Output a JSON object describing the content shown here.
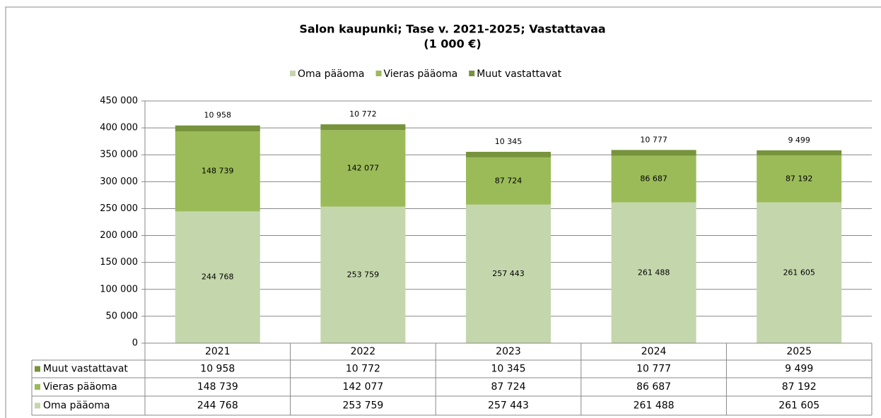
{
  "chart_data": {
    "type": "stacked_bar",
    "title": "Salon kaupunki; Tase v. 2021-2025; Vastattavaa",
    "subtitle": "(1 000 €)",
    "categories": [
      "2021",
      "2022",
      "2023",
      "2024",
      "2025"
    ],
    "series": [
      {
        "name": "Oma pääoma",
        "color": "#c4d7ac",
        "values": [
          244768,
          253759,
          257443,
          261488,
          261605
        ],
        "value_labels": [
          "244 768",
          "253 759",
          "257 443",
          "261 488",
          "261 605"
        ]
      },
      {
        "name": "Vieras pääoma",
        "color": "#9bbb59",
        "values": [
          148739,
          142077,
          87724,
          86687,
          87192
        ],
        "value_labels": [
          "148 739",
          "142 077",
          "87 724",
          "86 687",
          "87 192"
        ]
      },
      {
        "name": "Muut vastattavat",
        "color": "#77933c",
        "values": [
          10958,
          10772,
          10345,
          10777,
          9499
        ],
        "value_labels": [
          "10 958",
          "10 772",
          "10 345",
          "10 777",
          "9 499"
        ]
      }
    ],
    "ylim": [
      0,
      450000
    ],
    "yticks": [
      0,
      {
        "value": 50000,
        "label": "50 000"
      },
      {
        "value": 100000,
        "label": "100 000"
      },
      {
        "value": 150000,
        "label": "150 000"
      },
      {
        "value": 200000,
        "label": "200 000"
      },
      {
        "value": 250000,
        "label": "250 000"
      },
      {
        "value": 300000,
        "label": "300 000"
      },
      {
        "value": 350000,
        "label": "350 000"
      },
      {
        "value": 400000,
        "label": "400 000"
      },
      {
        "value": 450000,
        "label": "450 000"
      }
    ],
    "grid": true,
    "legend": "top",
    "data_table": true
  }
}
